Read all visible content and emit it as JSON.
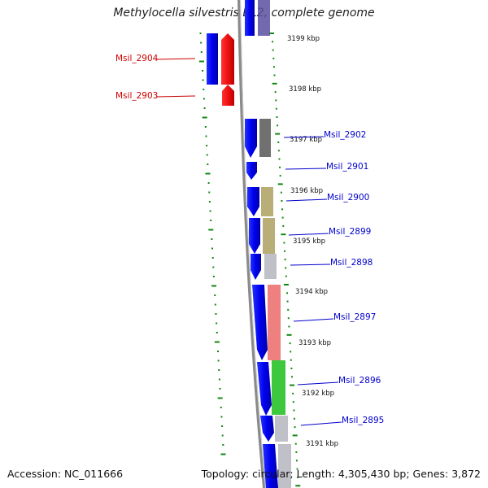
{
  "title": "Methylocella silvestris BL2, complete genome",
  "footer": {
    "accession": "Accession: NC_011666",
    "summary": "Topology: circular; Length: 4,305,430 bp; Genes: 3,872"
  },
  "colors": {
    "forward_gene": "#0000ee",
    "reverse_gene": "#ee1111",
    "label_forward": "#0000cc",
    "label_reverse": "#cc0000",
    "backbone": "#808080",
    "tick": "#118811"
  },
  "tick_labels": [
    "3199 kbp",
    "3198 kbp",
    "3197 kbp",
    "3196 kbp",
    "3195 kbp",
    "3194 kbp",
    "3193 kbp",
    "3192 kbp",
    "3191 kbp"
  ],
  "gene_labels_left": [
    "Msil_2904",
    "Msil_2903"
  ],
  "gene_labels_right": [
    "Msil_2902",
    "Msil_2901",
    "Msil_2900",
    "Msil_2899",
    "Msil_2898",
    "Msil_2897",
    "Msil_2896",
    "Msil_2895"
  ]
}
